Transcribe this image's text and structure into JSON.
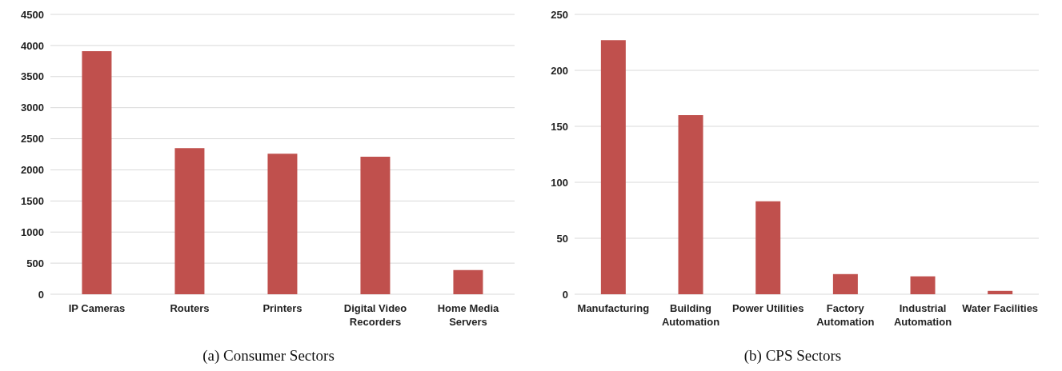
{
  "chart_data": [
    {
      "type": "bar",
      "title": "(a)  Consumer Sectors",
      "categories": [
        "IP Cameras",
        "Routers",
        "Printers",
        "Digital Video Recorders",
        "Home Media Servers"
      ],
      "values": [
        3910,
        2350,
        2260,
        2210,
        390
      ],
      "color": "#c0504d",
      "ylim": [
        0,
        4500
      ],
      "yticks": [
        0,
        500,
        1000,
        1500,
        2000,
        2500,
        3000,
        3500,
        4000,
        4500
      ],
      "grid": "y"
    },
    {
      "type": "bar",
      "title": "(b)  CPS Sectors",
      "categories": [
        "Manufacturing",
        "Building Automation",
        "Power Utilities",
        "Factory Automation",
        "Industrial Automation",
        "Water Facilities"
      ],
      "values": [
        227,
        160,
        83,
        18,
        16,
        3
      ],
      "color": "#c0504d",
      "ylim": [
        0,
        250
      ],
      "yticks": [
        0,
        50,
        100,
        150,
        200,
        250
      ],
      "grid": "y"
    }
  ]
}
